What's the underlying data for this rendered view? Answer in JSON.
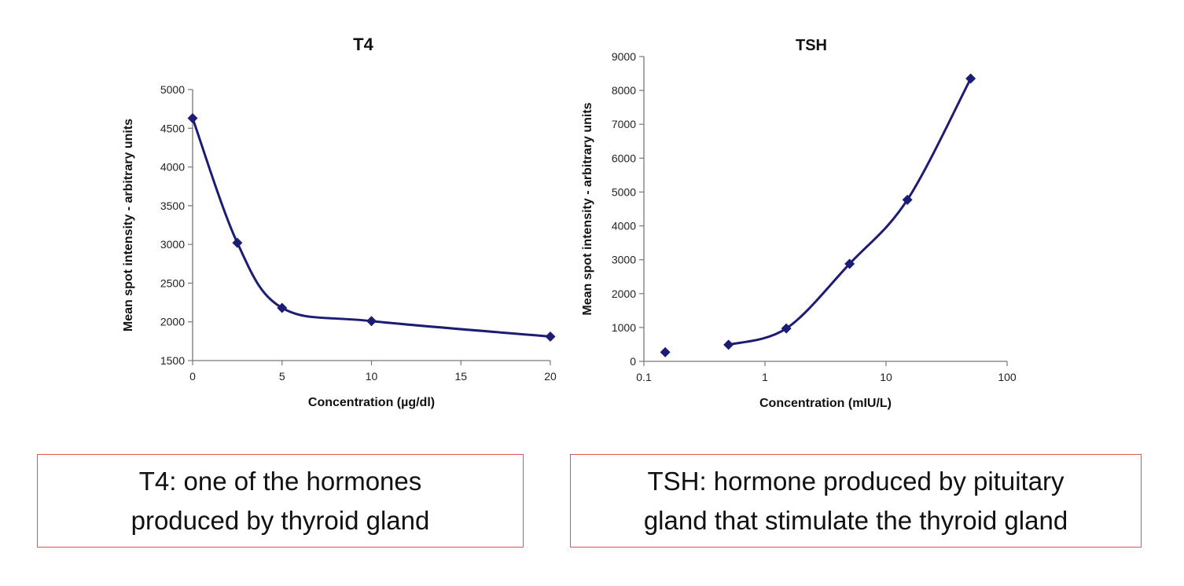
{
  "colors": {
    "series": "#1c1c74",
    "axis": "#777777",
    "caption_border": "#e0504c"
  },
  "chart_data": [
    {
      "type": "scatter",
      "title": "T4",
      "xlabel": "Concentration (µg/dl)",
      "ylabel": "Mean spot intensity - arbitrary units",
      "xlim": [
        0,
        20
      ],
      "ylim": [
        1500,
        5000
      ],
      "xticks": [
        0,
        5,
        10,
        15,
        20
      ],
      "yticks": [
        1500,
        2000,
        2500,
        3000,
        3500,
        4000,
        4500,
        5000
      ],
      "x_scale": "linear",
      "grid": false,
      "marker": "diamond",
      "smooth_line": true,
      "series": [
        {
          "x": [
            0,
            2.5,
            5,
            10,
            20
          ],
          "y": [
            4630,
            3020,
            2180,
            2010,
            1810
          ]
        }
      ]
    },
    {
      "type": "scatter",
      "title": "TSH",
      "xlabel": "Concentration (mIU/L)",
      "ylabel": "Mean spot intensity - arbitrary units",
      "xlim": [
        0.1,
        100
      ],
      "ylim": [
        0,
        9000
      ],
      "xticks": [
        0.1,
        1,
        10,
        100
      ],
      "xtick_labels": [
        "0.1",
        "1",
        "10",
        "100"
      ],
      "yticks": [
        0,
        1000,
        2000,
        3000,
        4000,
        5000,
        6000,
        7000,
        8000,
        9000
      ],
      "x_scale": "log",
      "grid": false,
      "marker": "diamond",
      "smooth_line": true,
      "series": [
        {
          "x": [
            0.15,
            0.5,
            1.5,
            5,
            15,
            50
          ],
          "y": [
            270,
            490,
            970,
            2880,
            4770,
            8350
          ],
          "line_starts_at_index": 1
        }
      ]
    }
  ],
  "captions": {
    "t4_line1": "T4: one of the hormones",
    "t4_line2": "produced by thyroid gland",
    "tsh_line1": "TSH: hormone produced by pituitary",
    "tsh_line2": "gland that stimulate the thyroid gland"
  }
}
